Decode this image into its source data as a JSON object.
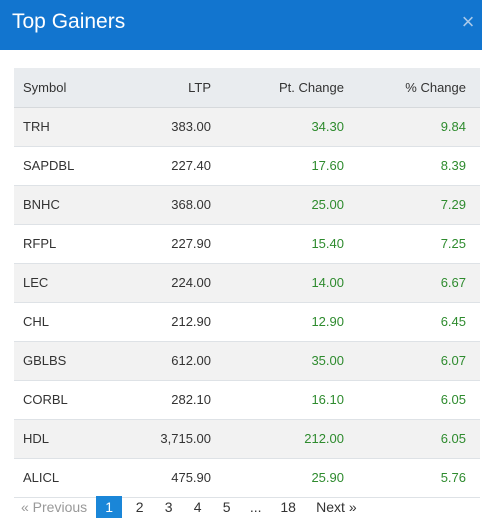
{
  "header": {
    "title": "Top Gainers",
    "close_glyph": "×"
  },
  "table": {
    "columns": [
      "Symbol",
      "LTP",
      "Pt. Change",
      "% Change"
    ],
    "rows": [
      {
        "symbol": "TRH",
        "ltp": "383.00",
        "pt_change": "34.30",
        "pct_change": "9.84"
      },
      {
        "symbol": "SAPDBL",
        "ltp": "227.40",
        "pt_change": "17.60",
        "pct_change": "8.39"
      },
      {
        "symbol": "BNHC",
        "ltp": "368.00",
        "pt_change": "25.00",
        "pct_change": "7.29"
      },
      {
        "symbol": "RFPL",
        "ltp": "227.90",
        "pt_change": "15.40",
        "pct_change": "7.25"
      },
      {
        "symbol": "LEC",
        "ltp": "224.00",
        "pt_change": "14.00",
        "pct_change": "6.67"
      },
      {
        "symbol": "CHL",
        "ltp": "212.90",
        "pt_change": "12.90",
        "pct_change": "6.45"
      },
      {
        "symbol": "GBLBS",
        "ltp": "612.00",
        "pt_change": "35.00",
        "pct_change": "6.07"
      },
      {
        "symbol": "CORBL",
        "ltp": "282.10",
        "pt_change": "16.10",
        "pct_change": "6.05"
      },
      {
        "symbol": "HDL",
        "ltp": "3,715.00",
        "pt_change": "212.00",
        "pct_change": "6.05"
      },
      {
        "symbol": "ALICL",
        "ltp": "475.90",
        "pt_change": "25.90",
        "pct_change": "5.76"
      }
    ]
  },
  "pagination": {
    "previous_label": "« Previous",
    "pages": [
      "1",
      "2",
      "3",
      "4",
      "5",
      "...",
      "18"
    ],
    "active_page": "1",
    "next_label": "Next »"
  },
  "colors": {
    "header_bg": "#1275cf",
    "positive": "#2e8b2e",
    "active_page_bg": "#1a86d8"
  }
}
